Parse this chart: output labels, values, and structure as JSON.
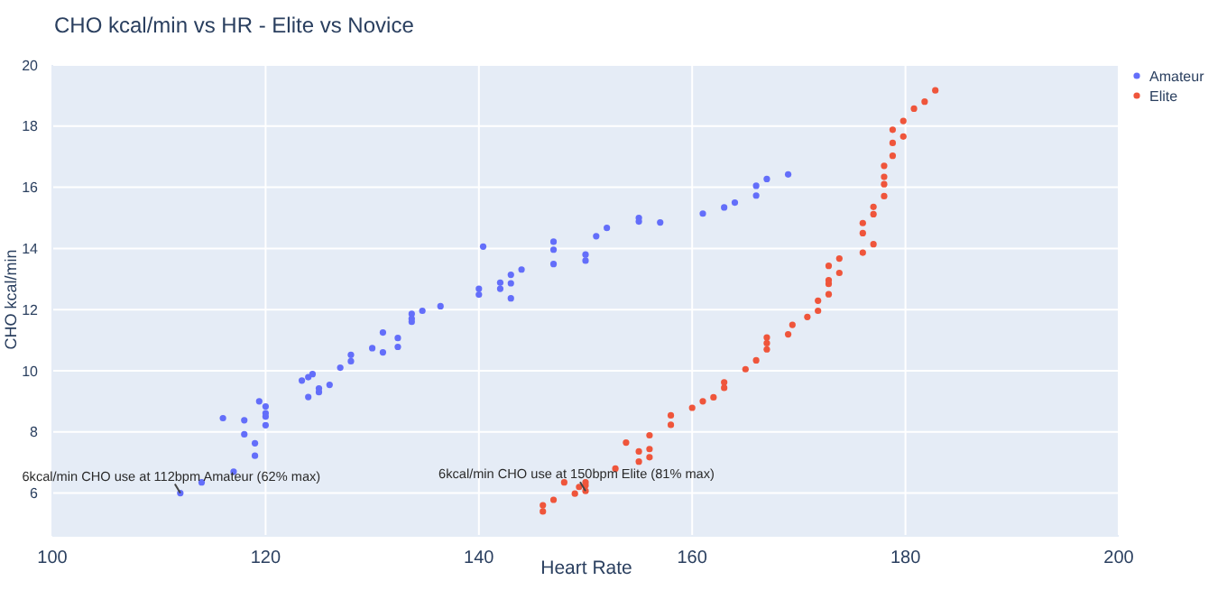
{
  "chart_data": {
    "type": "scatter",
    "title": "CHO kcal/min vs HR - Elite vs Novice",
    "xlabel": "Heart Rate",
    "ylabel": "CHO kcal/min",
    "xlim": [
      100,
      200
    ],
    "xticks": [
      100,
      120,
      140,
      160,
      180,
      200
    ],
    "ylim": [
      4.6,
      20
    ],
    "yticks": [
      6,
      8,
      10,
      12,
      14,
      16,
      18,
      20
    ],
    "grid": true,
    "legend": "top right",
    "marker": "circle",
    "annotations": [
      {
        "text": "6kcal/min CHO use at 112bpm Amateur (62% max)",
        "x": 112,
        "y": 6.0
      },
      {
        "text": "6kcal/min CHO use at 150bpm Elite (81% max)",
        "x": 150,
        "y": 6.07
      }
    ],
    "series": [
      {
        "name": "Amateur",
        "color": "#636efa",
        "x": [
          112,
          114,
          117,
          116,
          118,
          118,
          119,
          119,
          119.4,
          120,
          120,
          120,
          120,
          123.4,
          124,
          124.4,
          124,
          125,
          125,
          126,
          127,
          128,
          128,
          130,
          131,
          131,
          132.4,
          132.4,
          133.7,
          133.7,
          133.7,
          134.7,
          136.4,
          140,
          140,
          140.4,
          142,
          142,
          143,
          143,
          143,
          144,
          147,
          147,
          147,
          150,
          150,
          151,
          152,
          155,
          155,
          157,
          161,
          163,
          164,
          166,
          166,
          167,
          169
        ],
        "values": [
          6.0,
          6.35,
          6.7,
          8.45,
          8.38,
          7.92,
          7.63,
          7.22,
          9.0,
          8.83,
          8.61,
          8.5,
          8.22,
          9.68,
          9.79,
          9.89,
          9.14,
          9.42,
          9.3,
          9.54,
          10.1,
          10.52,
          10.31,
          10.74,
          11.25,
          10.6,
          11.07,
          10.78,
          11.86,
          11.7,
          11.6,
          11.96,
          12.11,
          12.68,
          12.49,
          14.06,
          12.88,
          12.68,
          13.14,
          12.86,
          12.37,
          13.31,
          14.22,
          13.96,
          13.49,
          13.8,
          13.6,
          14.4,
          14.67,
          15.0,
          14.88,
          14.85,
          15.14,
          15.34,
          15.5,
          16.05,
          15.73,
          16.27,
          16.42
        ]
      },
      {
        "name": "Elite",
        "color": "#ef553b",
        "x": [
          146,
          146,
          147,
          148,
          149,
          149.4,
          150,
          150,
          150,
          152.8,
          153.8,
          155,
          155,
          156,
          156,
          156,
          158,
          158,
          160,
          161,
          162,
          163,
          163,
          165,
          166,
          167,
          167,
          167,
          169,
          169.4,
          170.8,
          171.8,
          171.8,
          172.8,
          172.8,
          172.8,
          172.8,
          173.8,
          173.8,
          176,
          176,
          176,
          177,
          177,
          177,
          178,
          178,
          178,
          178,
          178.8,
          178.8,
          178.8,
          179.8,
          179.8,
          180.8,
          181.8,
          182.8
        ],
        "values": [
          5.6,
          5.4,
          5.78,
          6.35,
          5.98,
          6.2,
          6.35,
          6.25,
          6.07,
          6.8,
          7.65,
          7.36,
          7.03,
          7.89,
          7.44,
          7.17,
          8.54,
          8.23,
          8.79,
          9.0,
          9.13,
          9.62,
          9.44,
          10.05,
          10.34,
          11.09,
          10.9,
          10.7,
          11.19,
          11.5,
          11.76,
          11.96,
          12.29,
          12.5,
          12.84,
          12.96,
          13.43,
          13.2,
          13.67,
          13.86,
          14.5,
          14.83,
          14.14,
          15.12,
          15.36,
          15.71,
          16.1,
          16.34,
          16.7,
          17.03,
          17.45,
          17.88,
          17.66,
          18.17,
          18.57,
          18.8,
          19.17
        ]
      }
    ]
  }
}
